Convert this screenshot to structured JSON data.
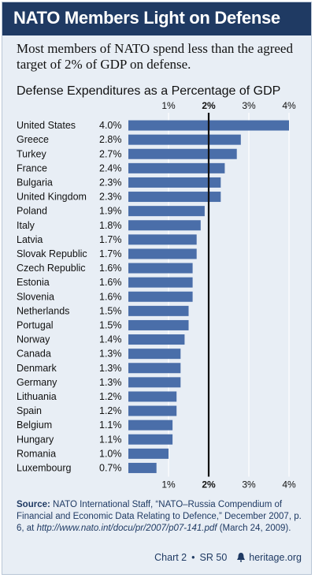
{
  "header": {
    "title": "NATO Members Light on Defense",
    "subtitle": "Most members of NATO spend less than the agreed target of 2% of GDP on defense.",
    "chart_title": "Defense Expenditures as a Percentage of GDP"
  },
  "chart_data": {
    "type": "bar",
    "orientation": "horizontal",
    "title": "Defense Expenditures as a Percentage of GDP",
    "categories": [
      "United States",
      "Greece",
      "Turkey",
      "France",
      "Bulgaria",
      "United Kingdom",
      "Poland",
      "Italy",
      "Latvia",
      "Slovak Republic",
      "Czech Republic",
      "Estonia",
      "Slovenia",
      "Netherlands",
      "Portugal",
      "Norway",
      "Canada",
      "Denmark",
      "Germany",
      "Lithuania",
      "Spain",
      "Belgium",
      "Hungary",
      "Romania",
      "Luxembourg"
    ],
    "values": [
      4.0,
      2.8,
      2.7,
      2.4,
      2.3,
      2.3,
      1.9,
      1.8,
      1.7,
      1.7,
      1.6,
      1.6,
      1.6,
      1.5,
      1.5,
      1.4,
      1.3,
      1.3,
      1.3,
      1.2,
      1.2,
      1.1,
      1.1,
      1.0,
      0.7
    ],
    "value_labels": [
      "4.0%",
      "2.8%",
      "2.7%",
      "2.4%",
      "2.3%",
      "2.3%",
      "1.9%",
      "1.8%",
      "1.7%",
      "1.7%",
      "1.6%",
      "1.6%",
      "1.6%",
      "1.5%",
      "1.5%",
      "1.4%",
      "1.3%",
      "1.3%",
      "1.3%",
      "1.2%",
      "1.2%",
      "1.1%",
      "1.1%",
      "1.0%",
      "0.7%"
    ],
    "xlim": [
      0,
      4
    ],
    "x_ticks": [
      "1%",
      "2%",
      "3%",
      "4%"
    ],
    "tick_values": [
      1,
      2,
      3,
      4
    ],
    "reference_line": 2,
    "grid": true,
    "bar_color": "#4a6ea9"
  },
  "source": {
    "label": "Source:",
    "text": "NATO International Staff, “NATO–Russia Compendium of Financial and Economic Data Relating to Defence,” December 2007, p. 6, at",
    "url": "http://www.nato.int/docu/pr/2007/p07-141.pdf",
    "accessed": "(March 24, 2009)."
  },
  "footer": {
    "chart_id": "Chart 2",
    "report": "SR 50",
    "site": "heritage.org"
  },
  "colors": {
    "header_bg": "#1f3a63",
    "panel_bg": "#e8eef5",
    "bar": "#4a6ea9"
  }
}
